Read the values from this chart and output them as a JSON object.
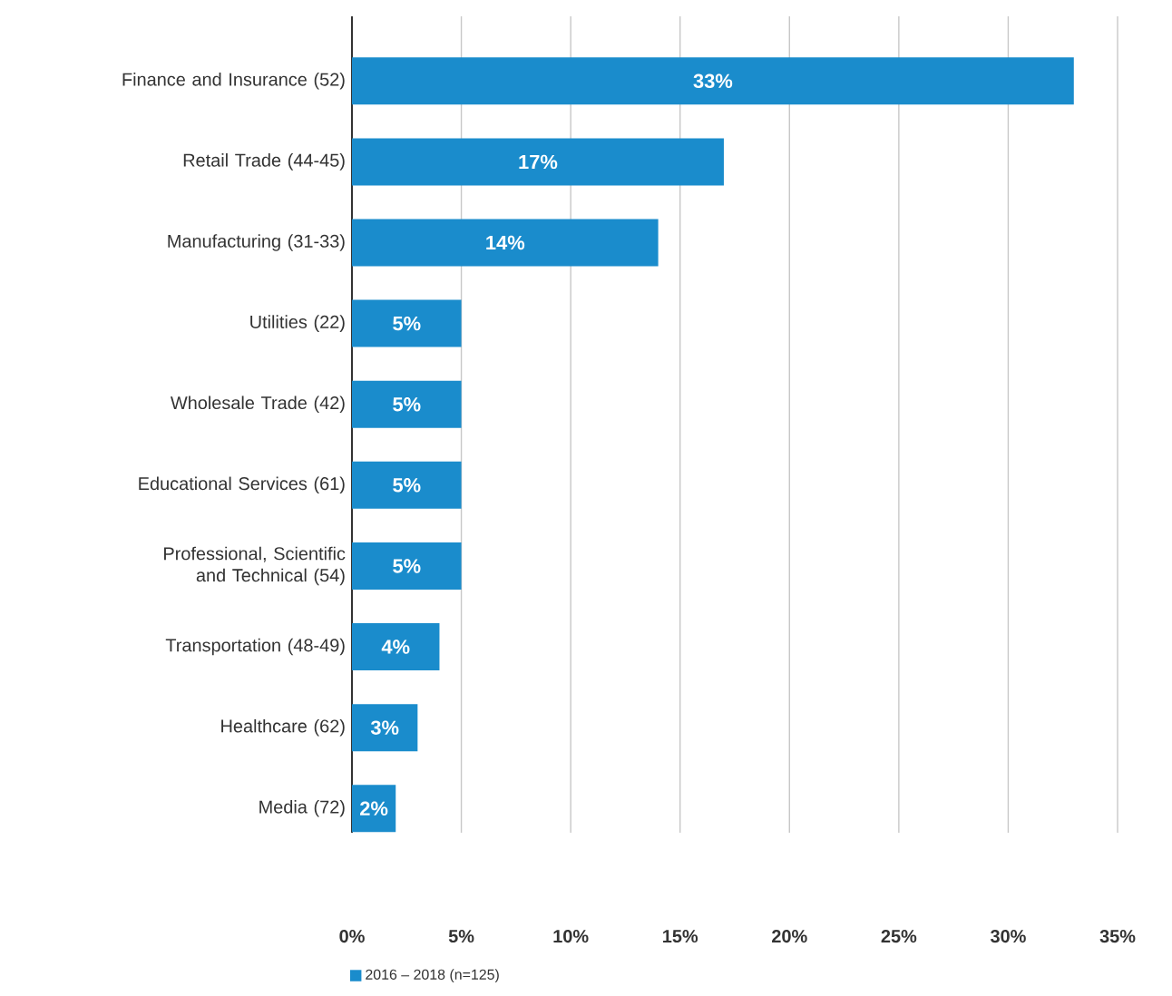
{
  "chart_data": {
    "type": "bar",
    "orientation": "horizontal",
    "categories": [
      "Finance and Insurance (52)",
      "Retail Trade (44-45)",
      "Manufacturing (31-33)",
      "Utilities (22)",
      "Wholesale Trade (42)",
      "Educational Services (61)",
      "Professional, Scientific and Technical (54)",
      "Transportation (48-49)",
      "Healthcare (62)",
      "Media (72)"
    ],
    "series": [
      {
        "name": "2016 – 2018 (n=125)",
        "color": "#1a8ccc",
        "values": [
          33,
          17,
          14,
          5,
          5,
          5,
          5,
          4,
          3,
          2
        ],
        "value_labels": [
          "33%",
          "17%",
          "14%",
          "5%",
          "5%",
          "5%",
          "5%",
          "4%",
          "3%",
          "2%"
        ]
      }
    ],
    "xlim": [
      0,
      35
    ],
    "xticks": [
      {
        "value": 0,
        "label": "0%"
      },
      {
        "value": 5,
        "label": "5%"
      },
      {
        "value": 10,
        "label": "10%"
      },
      {
        "value": 15,
        "label": "15%"
      },
      {
        "value": 20,
        "label": "20%"
      },
      {
        "value": 25,
        "label": "25%"
      },
      {
        "value": 30,
        "label": "30%"
      },
      {
        "value": 35,
        "label": "35%"
      }
    ],
    "grid": "x",
    "legend": "bottom"
  }
}
